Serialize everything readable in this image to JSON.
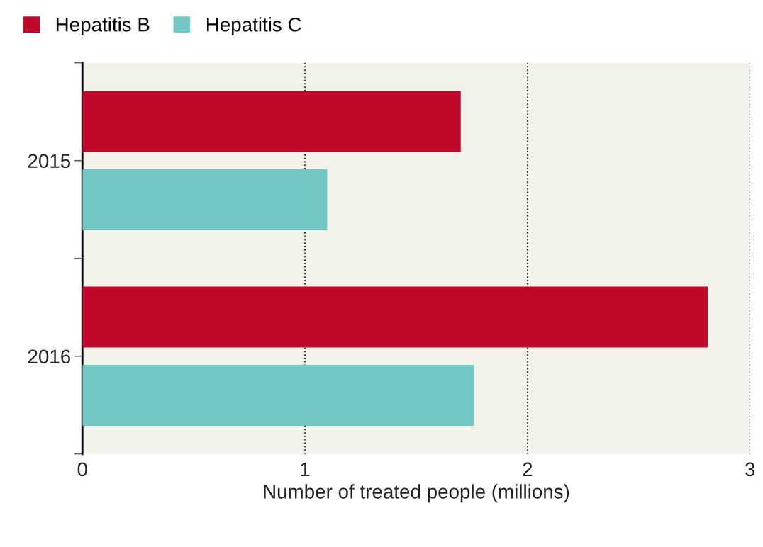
{
  "chart_data": {
    "type": "bar",
    "orientation": "horizontal",
    "xlabel": "Number of treated people (millions)",
    "categories": [
      "2015",
      "2016"
    ],
    "series": [
      {
        "name": "Hepatitis B",
        "color": "#c0082a",
        "values": [
          1.7,
          2.81
        ]
      },
      {
        "name": "Hepatitis C",
        "color": "#72c6c4",
        "values": [
          1.1,
          1.76
        ]
      }
    ],
    "xlim": [
      0,
      3
    ],
    "xticks": [
      0,
      1,
      2,
      3
    ],
    "grid": "x",
    "legend": "top left"
  }
}
